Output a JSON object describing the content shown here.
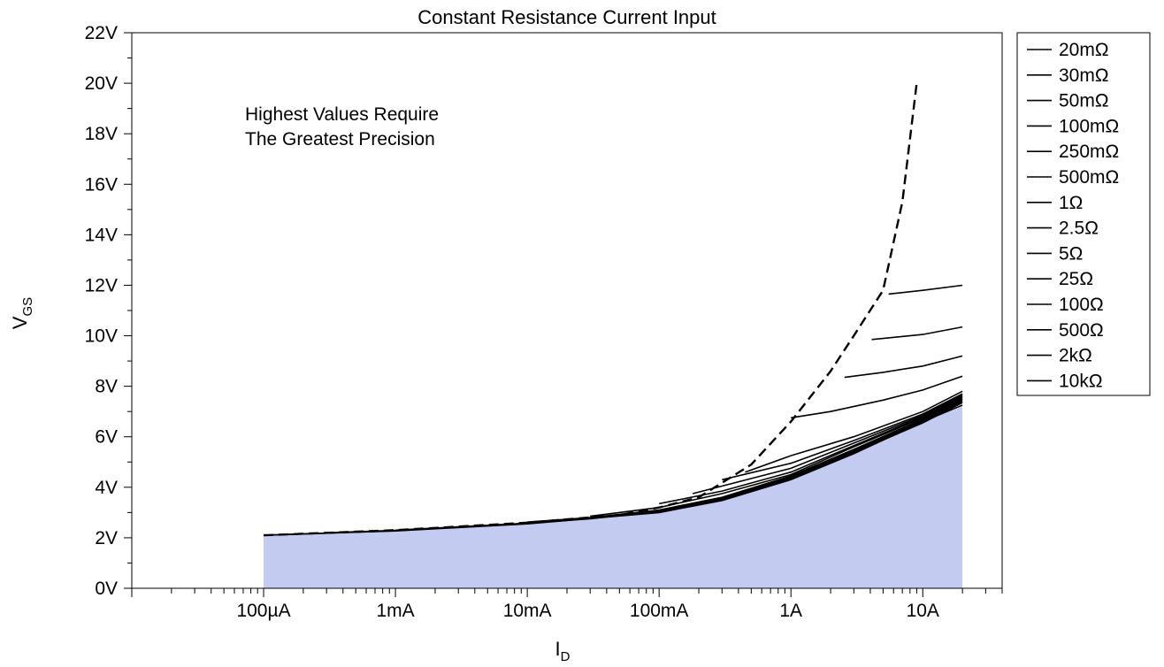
{
  "chart_data": {
    "type": "line",
    "title": "Constant Resistance Current Input",
    "xlabel": {
      "main": "I",
      "sub": "D"
    },
    "ylabel": {
      "main": "V",
      "sub": "GS"
    },
    "x_scale": "log",
    "xlim": [
      1e-05,
      40
    ],
    "ylim": [
      0,
      22
    ],
    "x_ticks": [
      {
        "value": 0.0001,
        "label": "100µA"
      },
      {
        "value": 0.001,
        "label": "1mA"
      },
      {
        "value": 0.01,
        "label": "10mA"
      },
      {
        "value": 0.1,
        "label": "100mA"
      },
      {
        "value": 1,
        "label": "1A"
      },
      {
        "value": 10,
        "label": "10A"
      }
    ],
    "y_ticks": [
      {
        "value": 0,
        "label": "0V"
      },
      {
        "value": 2,
        "label": "2V"
      },
      {
        "value": 4,
        "label": "4V"
      },
      {
        "value": 6,
        "label": "6V"
      },
      {
        "value": 8,
        "label": "8V"
      },
      {
        "value": 10,
        "label": "10V"
      },
      {
        "value": 12,
        "label": "12V"
      },
      {
        "value": 14,
        "label": "14V"
      },
      {
        "value": 16,
        "label": "16V"
      },
      {
        "value": 18,
        "label": "18V"
      },
      {
        "value": 20,
        "label": "20V"
      },
      {
        "value": 22,
        "label": "22V"
      }
    ],
    "annotation": [
      "Highest Values Require",
      "The Greatest Precision"
    ],
    "legend_position": "outside-right",
    "fill_color": "#c3cbf0",
    "line_color": "#000000",
    "boundary_curve": {
      "x": [
        0.0001,
        0.001,
        0.01,
        0.05,
        0.1,
        0.2,
        0.5,
        1,
        2,
        3,
        5,
        7,
        9
      ],
      "y": [
        2.1,
        2.3,
        2.6,
        2.9,
        3.2,
        3.6,
        4.9,
        6.6,
        8.6,
        10.0,
        11.8,
        15.3,
        20.0
      ]
    },
    "fill_region": {
      "x": [
        0.0001,
        0.001,
        0.01,
        0.1,
        0.3,
        1,
        3,
        10,
        20
      ],
      "y": [
        2.1,
        2.27,
        2.55,
        3.0,
        3.45,
        4.3,
        5.3,
        6.6,
        7.2
      ]
    },
    "series": [
      {
        "name": "20mΩ",
        "x": [
          5.5,
          10,
          20
        ],
        "y": [
          11.65,
          11.8,
          12.0
        ]
      },
      {
        "name": "30mΩ",
        "x": [
          4.1,
          10,
          20
        ],
        "y": [
          9.85,
          10.05,
          10.35
        ]
      },
      {
        "name": "50mΩ",
        "x": [
          2.55,
          5,
          10,
          20
        ],
        "y": [
          8.35,
          8.55,
          8.8,
          9.2
        ]
      },
      {
        "name": "100mΩ",
        "x": [
          1.0,
          2,
          5,
          10,
          20
        ],
        "y": [
          6.75,
          7.0,
          7.45,
          7.85,
          8.4
        ]
      },
      {
        "name": "250mΩ",
        "x": [
          0.45,
          1,
          3,
          10,
          20
        ],
        "y": [
          4.6,
          5.25,
          6.0,
          7.0,
          7.8
        ]
      },
      {
        "name": "500mΩ",
        "x": [
          0.3,
          1,
          3,
          10,
          20
        ],
        "y": [
          4.3,
          4.95,
          5.85,
          6.9,
          7.7
        ]
      },
      {
        "name": "1Ω",
        "x": [
          0.18,
          1,
          3,
          10,
          20
        ],
        "y": [
          3.75,
          4.75,
          5.75,
          6.85,
          7.65
        ]
      },
      {
        "name": "2.5Ω",
        "x": [
          0.1,
          0.3,
          1,
          3,
          10,
          20
        ],
        "y": [
          3.35,
          3.85,
          4.6,
          5.65,
          6.8,
          7.6
        ]
      },
      {
        "name": "5Ω",
        "x": [
          0.03,
          0.1,
          0.3,
          1,
          3,
          10,
          20
        ],
        "y": [
          2.85,
          3.2,
          3.75,
          4.5,
          5.6,
          6.75,
          7.55
        ]
      },
      {
        "name": "25Ω",
        "x": [
          0.01,
          0.03,
          0.1,
          0.3,
          1,
          3,
          10,
          20
        ],
        "y": [
          2.62,
          2.8,
          3.1,
          3.6,
          4.45,
          5.5,
          6.7,
          7.5
        ]
      },
      {
        "name": "100Ω",
        "x": [
          0.001,
          0.01,
          0.03,
          0.1,
          0.3,
          1,
          3,
          10,
          20
        ],
        "y": [
          2.3,
          2.58,
          2.77,
          3.07,
          3.55,
          4.4,
          5.45,
          6.65,
          7.45
        ]
      },
      {
        "name": "500Ω",
        "x": [
          0.0003,
          0.001,
          0.01,
          0.03,
          0.1,
          0.3,
          1,
          3,
          10,
          20
        ],
        "y": [
          2.2,
          2.29,
          2.57,
          2.75,
          3.05,
          3.52,
          4.35,
          5.4,
          6.6,
          7.4
        ]
      },
      {
        "name": "2kΩ",
        "x": [
          0.0001,
          0.001,
          0.01,
          0.1,
          0.3,
          1,
          3,
          10,
          20
        ],
        "y": [
          2.1,
          2.28,
          2.56,
          3.03,
          3.5,
          4.32,
          5.37,
          6.55,
          7.35
        ]
      },
      {
        "name": "10kΩ",
        "x": [
          0.0001,
          0.001,
          0.01,
          0.1,
          0.3,
          1,
          3,
          10,
          20
        ],
        "y": [
          2.1,
          2.27,
          2.55,
          3.0,
          3.47,
          4.3,
          5.33,
          6.6,
          7.25
        ]
      }
    ]
  }
}
